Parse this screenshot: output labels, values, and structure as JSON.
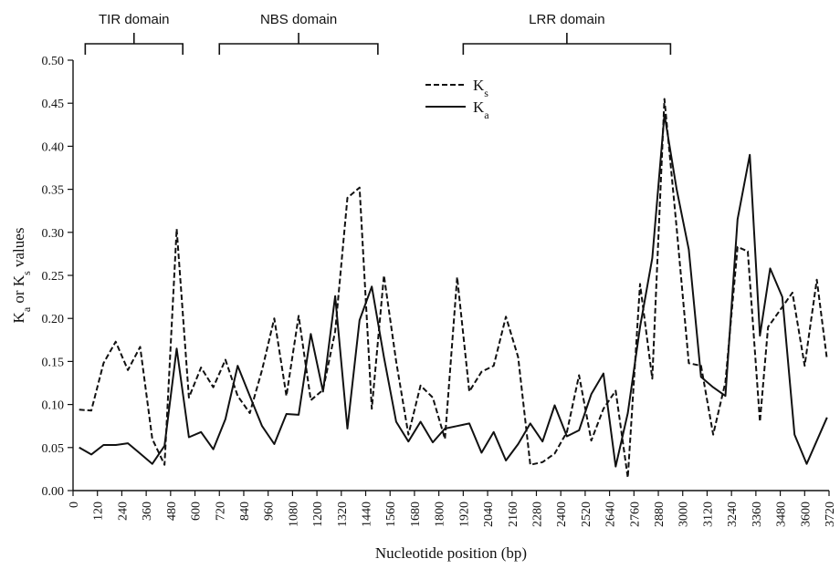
{
  "chart_data": {
    "type": "line",
    "title": "",
    "xlabel": "Nucleotide position (bp)",
    "ylabel": "K",
    "ylabel_sub_a": "a",
    "ylabel_mid": " or K",
    "ylabel_sub_s": "s",
    "ylabel_end": " values",
    "xlim": [
      0,
      3720
    ],
    "ylim": [
      0,
      0.5
    ],
    "x_ticks": [
      0,
      120,
      240,
      360,
      480,
      600,
      720,
      840,
      960,
      1080,
      1200,
      1320,
      1440,
      1560,
      1680,
      1800,
      1920,
      2040,
      2160,
      2280,
      2400,
      2520,
      2640,
      2760,
      2880,
      3000,
      3120,
      3240,
      3360,
      3480,
      3600,
      3720
    ],
    "y_ticks": [
      "0.00",
      "0.05",
      "0.10",
      "0.15",
      "0.20",
      "0.25",
      "0.30",
      "0.35",
      "0.40",
      "0.45",
      "0.50"
    ],
    "grid": false,
    "legend_position": "top-center",
    "domains": [
      {
        "label": "TIR domain",
        "start": 60,
        "end": 540
      },
      {
        "label": "NBS domain",
        "start": 720,
        "end": 1500
      },
      {
        "label": "LRR domain",
        "start": 1920,
        "end": 2940
      }
    ],
    "series": [
      {
        "name": "K",
        "subscript": "s",
        "style": "dashed",
        "points": [
          [
            30,
            0.094
          ],
          [
            90,
            0.093
          ],
          [
            150,
            0.148
          ],
          [
            210,
            0.173
          ],
          [
            270,
            0.14
          ],
          [
            330,
            0.167
          ],
          [
            390,
            0.06
          ],
          [
            450,
            0.03
          ],
          [
            510,
            0.304
          ],
          [
            570,
            0.108
          ],
          [
            630,
            0.143
          ],
          [
            690,
            0.12
          ],
          [
            750,
            0.152
          ],
          [
            810,
            0.11
          ],
          [
            870,
            0.09
          ],
          [
            930,
            0.14
          ],
          [
            990,
            0.2
          ],
          [
            1050,
            0.11
          ],
          [
            1110,
            0.203
          ],
          [
            1170,
            0.105
          ],
          [
            1230,
            0.117
          ],
          [
            1290,
            0.185
          ],
          [
            1350,
            0.34
          ],
          [
            1410,
            0.352
          ],
          [
            1470,
            0.095
          ],
          [
            1530,
            0.25
          ],
          [
            1590,
            0.15
          ],
          [
            1650,
            0.065
          ],
          [
            1710,
            0.122
          ],
          [
            1770,
            0.108
          ],
          [
            1830,
            0.06
          ],
          [
            1890,
            0.248
          ],
          [
            1950,
            0.115
          ],
          [
            2010,
            0.138
          ],
          [
            2070,
            0.145
          ],
          [
            2130,
            0.202
          ],
          [
            2190,
            0.155
          ],
          [
            2250,
            0.03
          ],
          [
            2310,
            0.033
          ],
          [
            2370,
            0.043
          ],
          [
            2430,
            0.068
          ],
          [
            2490,
            0.134
          ],
          [
            2550,
            0.058
          ],
          [
            2610,
            0.095
          ],
          [
            2670,
            0.116
          ],
          [
            2730,
            0.015
          ],
          [
            2790,
            0.24
          ],
          [
            2850,
            0.13
          ],
          [
            2910,
            0.455
          ],
          [
            2970,
            0.305
          ],
          [
            3030,
            0.148
          ],
          [
            3090,
            0.145
          ],
          [
            3150,
            0.065
          ],
          [
            3210,
            0.126
          ],
          [
            3270,
            0.283
          ],
          [
            3320,
            0.278
          ],
          [
            3380,
            0.08
          ],
          [
            3420,
            0.19
          ],
          [
            3480,
            0.21
          ],
          [
            3540,
            0.23
          ],
          [
            3600,
            0.145
          ],
          [
            3660,
            0.245
          ],
          [
            3710,
            0.152
          ]
        ]
      },
      {
        "name": "K",
        "subscript": "a",
        "style": "solid",
        "points": [
          [
            30,
            0.05
          ],
          [
            90,
            0.042
          ],
          [
            150,
            0.053
          ],
          [
            210,
            0.053
          ],
          [
            270,
            0.055
          ],
          [
            330,
            0.043
          ],
          [
            390,
            0.031
          ],
          [
            450,
            0.052
          ],
          [
            510,
            0.165
          ],
          [
            570,
            0.062
          ],
          [
            630,
            0.068
          ],
          [
            690,
            0.048
          ],
          [
            750,
            0.083
          ],
          [
            810,
            0.145
          ],
          [
            870,
            0.11
          ],
          [
            930,
            0.075
          ],
          [
            990,
            0.054
          ],
          [
            1050,
            0.089
          ],
          [
            1110,
            0.088
          ],
          [
            1170,
            0.182
          ],
          [
            1230,
            0.115
          ],
          [
            1290,
            0.226
          ],
          [
            1350,
            0.072
          ],
          [
            1410,
            0.198
          ],
          [
            1470,
            0.237
          ],
          [
            1530,
            0.155
          ],
          [
            1590,
            0.08
          ],
          [
            1650,
            0.057
          ],
          [
            1710,
            0.08
          ],
          [
            1770,
            0.056
          ],
          [
            1830,
            0.072
          ],
          [
            1890,
            0.075
          ],
          [
            1950,
            0.078
          ],
          [
            2010,
            0.044
          ],
          [
            2070,
            0.068
          ],
          [
            2130,
            0.035
          ],
          [
            2190,
            0.054
          ],
          [
            2250,
            0.078
          ],
          [
            2310,
            0.057
          ],
          [
            2370,
            0.099
          ],
          [
            2430,
            0.063
          ],
          [
            2490,
            0.07
          ],
          [
            2550,
            0.112
          ],
          [
            2610,
            0.136
          ],
          [
            2670,
            0.028
          ],
          [
            2730,
            0.09
          ],
          [
            2790,
            0.19
          ],
          [
            2850,
            0.27
          ],
          [
            2910,
            0.437
          ],
          [
            2970,
            0.35
          ],
          [
            3030,
            0.28
          ],
          [
            3090,
            0.132
          ],
          [
            3150,
            0.12
          ],
          [
            3210,
            0.11
          ],
          [
            3270,
            0.315
          ],
          [
            3330,
            0.39
          ],
          [
            3380,
            0.18
          ],
          [
            3430,
            0.258
          ],
          [
            3490,
            0.225
          ],
          [
            3550,
            0.065
          ],
          [
            3610,
            0.031
          ],
          [
            3710,
            0.085
          ]
        ]
      }
    ]
  }
}
